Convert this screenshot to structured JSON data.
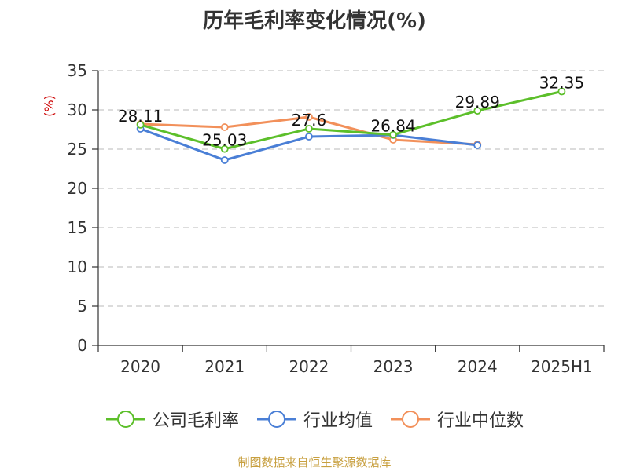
{
  "chart_data": {
    "type": "line",
    "title": "历年毛利率变化情况(%)",
    "ylabel": "(%)",
    "xlabel": "",
    "categories": [
      "2020",
      "2021",
      "2022",
      "2023",
      "2024",
      "2025H1"
    ],
    "ylim": [
      0,
      35
    ],
    "yticks": [
      0,
      5,
      10,
      15,
      20,
      25,
      30,
      35
    ],
    "grid": true,
    "legend_position": "bottom",
    "series": [
      {
        "name": "公司毛利率",
        "color": "#5cbf2a",
        "values": [
          28.11,
          25.03,
          27.6,
          26.84,
          29.89,
          32.35
        ],
        "labels": [
          "28.11",
          "25.03",
          "27.6",
          "26.84",
          "29.89",
          "32.35"
        ]
      },
      {
        "name": "行业均值",
        "color": "#4a7fd6",
        "values": [
          27.6,
          23.6,
          26.6,
          26.8,
          25.5,
          null
        ]
      },
      {
        "name": "行业中位数",
        "color": "#f2905a",
        "values": [
          28.2,
          27.8,
          29.1,
          26.2,
          25.6,
          null
        ]
      }
    ]
  },
  "source": "制图数据来自恒生聚源数据库"
}
